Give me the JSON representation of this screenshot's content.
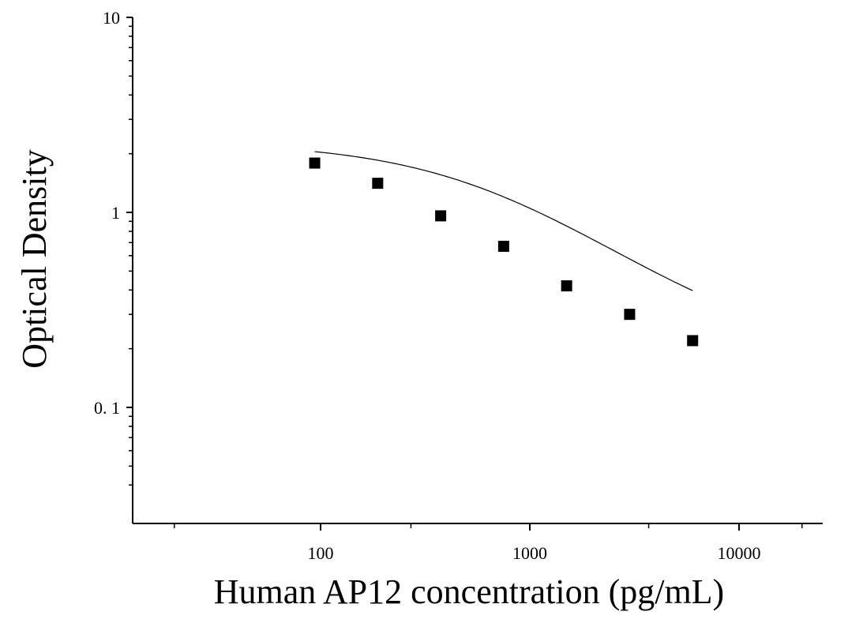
{
  "chart_data": {
    "type": "scatter",
    "title": "",
    "xlabel": "Human AP12 concentration (pg/mL)",
    "ylabel": "Optical Density",
    "x_scale": "log",
    "y_scale": "log",
    "xlim": [
      10,
      25000
    ],
    "ylim": [
      0.03,
      10
    ],
    "x_ticks": [
      {
        "value": 100,
        "label": "100"
      },
      {
        "value": 1000,
        "label": "1000"
      },
      {
        "value": 10000,
        "label": "10000"
      }
    ],
    "y_ticks": [
      {
        "value": 0.1,
        "label": "0. 1"
      },
      {
        "value": 1,
        "label": "1"
      },
      {
        "value": 10,
        "label": "10"
      }
    ],
    "grid": false,
    "series": [
      {
        "marker": "square",
        "color": "#000000",
        "points": [
          {
            "x": 93.75,
            "y": 1.79
          },
          {
            "x": 187.5,
            "y": 1.41
          },
          {
            "x": 375,
            "y": 0.96
          },
          {
            "x": 750,
            "y": 0.67
          },
          {
            "x": 1500,
            "y": 0.42
          },
          {
            "x": 3000,
            "y": 0.3
          },
          {
            "x": 6000,
            "y": 0.22
          }
        ]
      }
    ],
    "fit_curve": {
      "model": "4PL",
      "top": 2.3,
      "bottom": 0.175,
      "ec50": 700,
      "slope": 1.0,
      "color": "#000000"
    }
  }
}
